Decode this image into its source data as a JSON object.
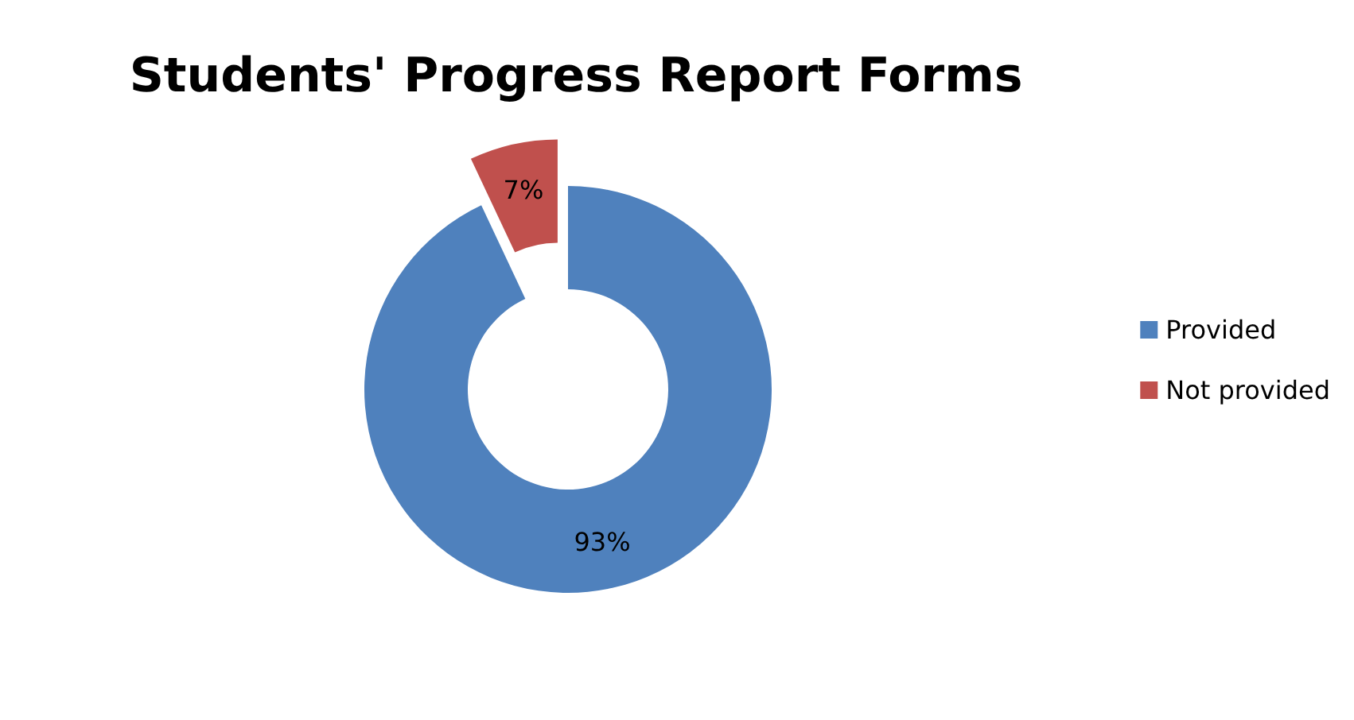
{
  "chart_data": {
    "type": "donut",
    "title": "Students' Progress Report Forms",
    "categories": [
      "Provided",
      "Not provided"
    ],
    "values": [
      93,
      7
    ],
    "colors": [
      "#4f81bd",
      "#c0504d"
    ],
    "value_labels": [
      "93%",
      "7%"
    ],
    "legend": "right"
  }
}
